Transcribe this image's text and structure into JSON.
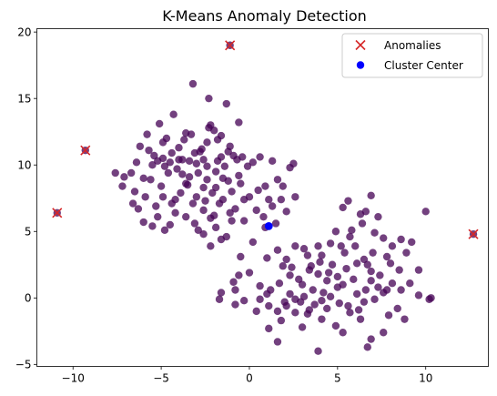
{
  "chart_data": {
    "type": "scatter",
    "title": "K-Means Anomaly Detection",
    "xlabel": "",
    "ylabel": "",
    "xlim": [
      -12.05,
      13.55
    ],
    "ylim": [
      -5.15,
      20.25
    ],
    "xticks": [
      -10,
      -5,
      0,
      5,
      10
    ],
    "yticks": [
      -5,
      0,
      5,
      10,
      15,
      20
    ],
    "xtick_labels": [
      "−10",
      "−5",
      "0",
      "5",
      "10"
    ],
    "ytick_labels": [
      "−5",
      "0",
      "5",
      "10",
      "15",
      "20"
    ],
    "grid": false,
    "legend_position": "top-right",
    "series": [
      {
        "name": "",
        "marker": "circle",
        "color": "#440154",
        "alpha": 0.75,
        "points": [
          [
            -3.2,
            16.1
          ],
          [
            -2.3,
            15.0
          ],
          [
            -5.1,
            13.1
          ],
          [
            -4.3,
            13.8
          ],
          [
            -6.2,
            11.4
          ],
          [
            -7.6,
            9.4
          ],
          [
            -6.7,
            9.4
          ],
          [
            -5.7,
            11.1
          ],
          [
            -5.4,
            10.7
          ],
          [
            -4.9,
            10.5
          ],
          [
            -4.5,
            10.2
          ],
          [
            -4.0,
            11.3
          ],
          [
            -3.8,
            10.4
          ],
          [
            -3.4,
            10.3
          ],
          [
            -3.1,
            10.9
          ],
          [
            -2.7,
            11.2
          ],
          [
            -2.3,
            12.8
          ],
          [
            -2.0,
            12.6
          ],
          [
            -1.8,
            11.9
          ],
          [
            -1.6,
            10.6
          ],
          [
            -1.4,
            9.9
          ],
          [
            -1.1,
            11.4
          ],
          [
            -0.7,
            10.4
          ],
          [
            -0.4,
            10.6
          ],
          [
            -0.1,
            9.9
          ],
          [
            0.2,
            10.2
          ],
          [
            0.6,
            10.6
          ],
          [
            1.3,
            10.3
          ],
          [
            1.6,
            8.9
          ],
          [
            2.3,
            9.8
          ],
          [
            2.5,
            10.1
          ],
          [
            1.9,
            8.4
          ],
          [
            1.1,
            7.4
          ],
          [
            0.5,
            8.1
          ],
          [
            0.0,
            7.6
          ],
          [
            -0.5,
            8.6
          ],
          [
            -1.0,
            8.0
          ],
          [
            -1.5,
            7.4
          ],
          [
            -2.1,
            7.9
          ],
          [
            -2.6,
            8.3
          ],
          [
            -3.0,
            7.6
          ],
          [
            -3.5,
            8.5
          ],
          [
            -3.9,
            7.9
          ],
          [
            -4.4,
            7.1
          ],
          [
            -4.9,
            7.6
          ],
          [
            -5.3,
            6.9
          ],
          [
            -5.9,
            7.6
          ],
          [
            -6.3,
            6.7
          ],
          [
            -6.0,
            5.7
          ],
          [
            -5.5,
            5.4
          ],
          [
            -4.8,
            5.1
          ],
          [
            -4.2,
            6.4
          ],
          [
            -3.6,
            6.1
          ],
          [
            -3.1,
            5.6
          ],
          [
            -2.6,
            6.6
          ],
          [
            -2.2,
            6.0
          ],
          [
            -1.9,
            5.3
          ],
          [
            -2.6,
            4.8
          ],
          [
            -1.6,
            4.4
          ],
          [
            -2.2,
            3.9
          ],
          [
            -1.3,
            4.6
          ],
          [
            -0.8,
            6.7
          ],
          [
            -0.3,
            5.8
          ],
          [
            0.4,
            6.6
          ],
          [
            0.8,
            6.1
          ],
          [
            1.3,
            6.9
          ],
          [
            1.8,
            7.4
          ],
          [
            2.6,
            7.6
          ],
          [
            2.1,
            6.5
          ],
          [
            -7.2,
            8.4
          ],
          [
            -6.5,
            8.0
          ],
          [
            -5.6,
            8.9
          ],
          [
            -4.6,
            9.4
          ],
          [
            -4.1,
            9.7
          ],
          [
            -3.4,
            9.1
          ],
          [
            -2.9,
            9.4
          ],
          [
            -2.4,
            9.9
          ],
          [
            -1.9,
            9.5
          ],
          [
            -1.2,
            8.8
          ],
          [
            -0.6,
            9.2
          ],
          [
            -4.7,
            12.0
          ],
          [
            -3.6,
            12.4
          ],
          [
            -1.3,
            14.6
          ],
          [
            -0.6,
            13.2
          ],
          [
            -2.8,
            11.0
          ],
          [
            -3.7,
            11.9
          ],
          [
            -4.9,
            11.7
          ],
          [
            -5.8,
            12.3
          ],
          [
            -6.4,
            10.2
          ],
          [
            -7.1,
            9.1
          ],
          [
            -5.0,
            8.4
          ],
          [
            -3.2,
            7.1
          ],
          [
            -1.7,
            7.1
          ],
          [
            0.9,
            5.3
          ],
          [
            0.2,
            4.2
          ],
          [
            -0.5,
            3.1
          ],
          [
            1.0,
            3.0
          ],
          [
            1.6,
            3.6
          ],
          [
            2.1,
            2.9
          ],
          [
            2.6,
            3.9
          ],
          [
            3.1,
            3.7
          ],
          [
            3.5,
            2.4
          ],
          [
            4.1,
            3.2
          ],
          [
            4.6,
            4.1
          ],
          [
            4.9,
            5.0
          ],
          [
            5.2,
            3.9
          ],
          [
            5.7,
            4.6
          ],
          [
            5.3,
            6.8
          ],
          [
            5.6,
            7.3
          ],
          [
            6.3,
            6.3
          ],
          [
            6.6,
            6.5
          ],
          [
            6.9,
            7.7
          ],
          [
            7.3,
            6.1
          ],
          [
            7.1,
            4.9
          ],
          [
            7.6,
            4.5
          ],
          [
            8.1,
            3.9
          ],
          [
            8.6,
            4.4
          ],
          [
            9.2,
            4.2
          ],
          [
            10.0,
            6.5
          ],
          [
            9.6,
            2.1
          ],
          [
            9.1,
            1.1
          ],
          [
            8.5,
            2.1
          ],
          [
            8.0,
            2.6
          ],
          [
            7.4,
            1.7
          ],
          [
            6.9,
            2.0
          ],
          [
            6.5,
            2.9
          ],
          [
            6.1,
            2.6
          ],
          [
            5.5,
            2.2
          ],
          [
            5.0,
            1.6
          ],
          [
            4.4,
            1.3
          ],
          [
            3.9,
            1.8
          ],
          [
            3.4,
            2.1
          ],
          [
            2.8,
            1.4
          ],
          [
            2.3,
            1.7
          ],
          [
            1.7,
            1.1
          ],
          [
            1.2,
            0.6
          ],
          [
            0.6,
            0.9
          ],
          [
            0.0,
            1.9
          ],
          [
            -0.6,
            1.7
          ],
          [
            -0.9,
            1.2
          ],
          [
            -1.6,
            0.4
          ],
          [
            -1.7,
            -0.1
          ],
          [
            -0.8,
            0.6
          ],
          [
            -0.3,
            -0.2
          ],
          [
            0.6,
            -0.1
          ],
          [
            1.1,
            -0.6
          ],
          [
            1.6,
            -1.0
          ],
          [
            2.1,
            -0.6
          ],
          [
            2.6,
            -0.1
          ],
          [
            3.1,
            0.1
          ],
          [
            3.6,
            0.6
          ],
          [
            4.1,
            -0.2
          ],
          [
            4.6,
            0.1
          ],
          [
            5.1,
            -0.4
          ],
          [
            5.6,
            -0.6
          ],
          [
            6.1,
            0.3
          ],
          [
            6.6,
            0.6
          ],
          [
            7.1,
            -0.1
          ],
          [
            7.6,
            0.4
          ],
          [
            8.1,
            1.1
          ],
          [
            8.6,
            0.6
          ],
          [
            10.3,
            0.0
          ],
          [
            10.2,
            -0.1
          ],
          [
            8.8,
            -1.6
          ],
          [
            7.9,
            -1.3
          ],
          [
            7.6,
            -2.6
          ],
          [
            6.9,
            -3.1
          ],
          [
            6.7,
            -3.7
          ],
          [
            5.3,
            -2.6
          ],
          [
            4.9,
            -2.1
          ],
          [
            4.1,
            -1.6
          ],
          [
            3.3,
            -1.2
          ],
          [
            3.0,
            -2.2
          ],
          [
            2.6,
            -1.1
          ],
          [
            1.8,
            -1.7
          ],
          [
            1.1,
            -2.3
          ],
          [
            1.6,
            -3.3
          ],
          [
            3.9,
            -4.0
          ],
          [
            5.7,
            -1.1
          ],
          [
            6.3,
            -1.6
          ],
          [
            4.4,
            -0.8
          ],
          [
            3.7,
            -0.5
          ],
          [
            2.9,
            -0.3
          ],
          [
            2.3,
            0.3
          ],
          [
            6.9,
            1.3
          ],
          [
            7.8,
            0.6
          ],
          [
            9.6,
            0.2
          ],
          [
            8.4,
            -0.8
          ],
          [
            6.2,
            -0.9
          ],
          [
            5.0,
            0.8
          ],
          [
            4.5,
            1.9
          ],
          [
            3.9,
            3.9
          ],
          [
            5.4,
            3.4
          ],
          [
            6.0,
            3.9
          ],
          [
            5.8,
            5.1
          ],
          [
            6.4,
            5.6
          ],
          [
            7.8,
            3.1
          ],
          [
            8.9,
            3.4
          ],
          [
            7.0,
            3.4
          ],
          [
            6.7,
            2.5
          ],
          [
            5.9,
            1.4
          ],
          [
            5.3,
            1.0
          ],
          [
            4.7,
            2.5
          ],
          [
            4.0,
            2.7
          ],
          [
            3.3,
            3.2
          ],
          [
            2.4,
            2.3
          ],
          [
            1.9,
            2.4
          ],
          [
            3.0,
            1.0
          ],
          [
            3.4,
            -0.9
          ],
          [
            2.0,
            -0.3
          ],
          [
            1.0,
            0.3
          ],
          [
            0.4,
            -1.0
          ],
          [
            -0.8,
            -0.5
          ],
          [
            4.2,
            0.4
          ],
          [
            6.5,
            -0.3
          ],
          [
            7.3,
            0.8
          ],
          [
            -4.2,
            7.4
          ],
          [
            -3.8,
            9.3
          ],
          [
            -2.5,
            7.3
          ],
          [
            -2.0,
            6.2
          ],
          [
            -1.0,
            5.8
          ],
          [
            -1.5,
            9.0
          ],
          [
            -0.9,
            10.7
          ],
          [
            -2.4,
            11.7
          ],
          [
            -3.3,
            12.3
          ],
          [
            -4.4,
            10.9
          ],
          [
            -5.5,
            10.0
          ],
          [
            -6.0,
            9.0
          ],
          [
            -2.6,
            10.4
          ],
          [
            -1.9,
            8.3
          ],
          [
            -3.6,
            8.6
          ],
          [
            -4.8,
            9.9
          ],
          [
            -0.3,
            7.4
          ],
          [
            0.9,
            8.4
          ],
          [
            1.5,
            5.6
          ],
          [
            -1.1,
            6.4
          ],
          [
            -2.9,
            5.1
          ],
          [
            -4.5,
            5.5
          ],
          [
            -5.2,
            6.1
          ],
          [
            -6.6,
            7.1
          ],
          [
            -2.2,
            13.0
          ],
          [
            -1.6,
            12.2
          ],
          [
            -1.2,
            11.0
          ],
          [
            -1.8,
            10.3
          ],
          [
            -3.0,
            10.1
          ],
          [
            -4.0,
            10.4
          ],
          [
            -5.2,
            10.3
          ],
          [
            -2.4,
            8.9
          ]
        ]
      },
      {
        "name": "Anomalies",
        "marker": "x",
        "color": "#d62728",
        "points": [
          [
            -1.1,
            19.0
          ],
          [
            -9.3,
            11.1
          ],
          [
            -10.9,
            6.4
          ],
          [
            12.7,
            4.8
          ]
        ]
      },
      {
        "name": "Cluster Center",
        "marker": "circle",
        "color": "#0000ff",
        "points": [
          [
            1.1,
            5.4
          ]
        ]
      }
    ],
    "legend": [
      {
        "label": "Anomalies",
        "marker": "x",
        "color": "#d62728"
      },
      {
        "label": "Cluster Center",
        "marker": "circle",
        "color": "#0000ff"
      }
    ]
  }
}
